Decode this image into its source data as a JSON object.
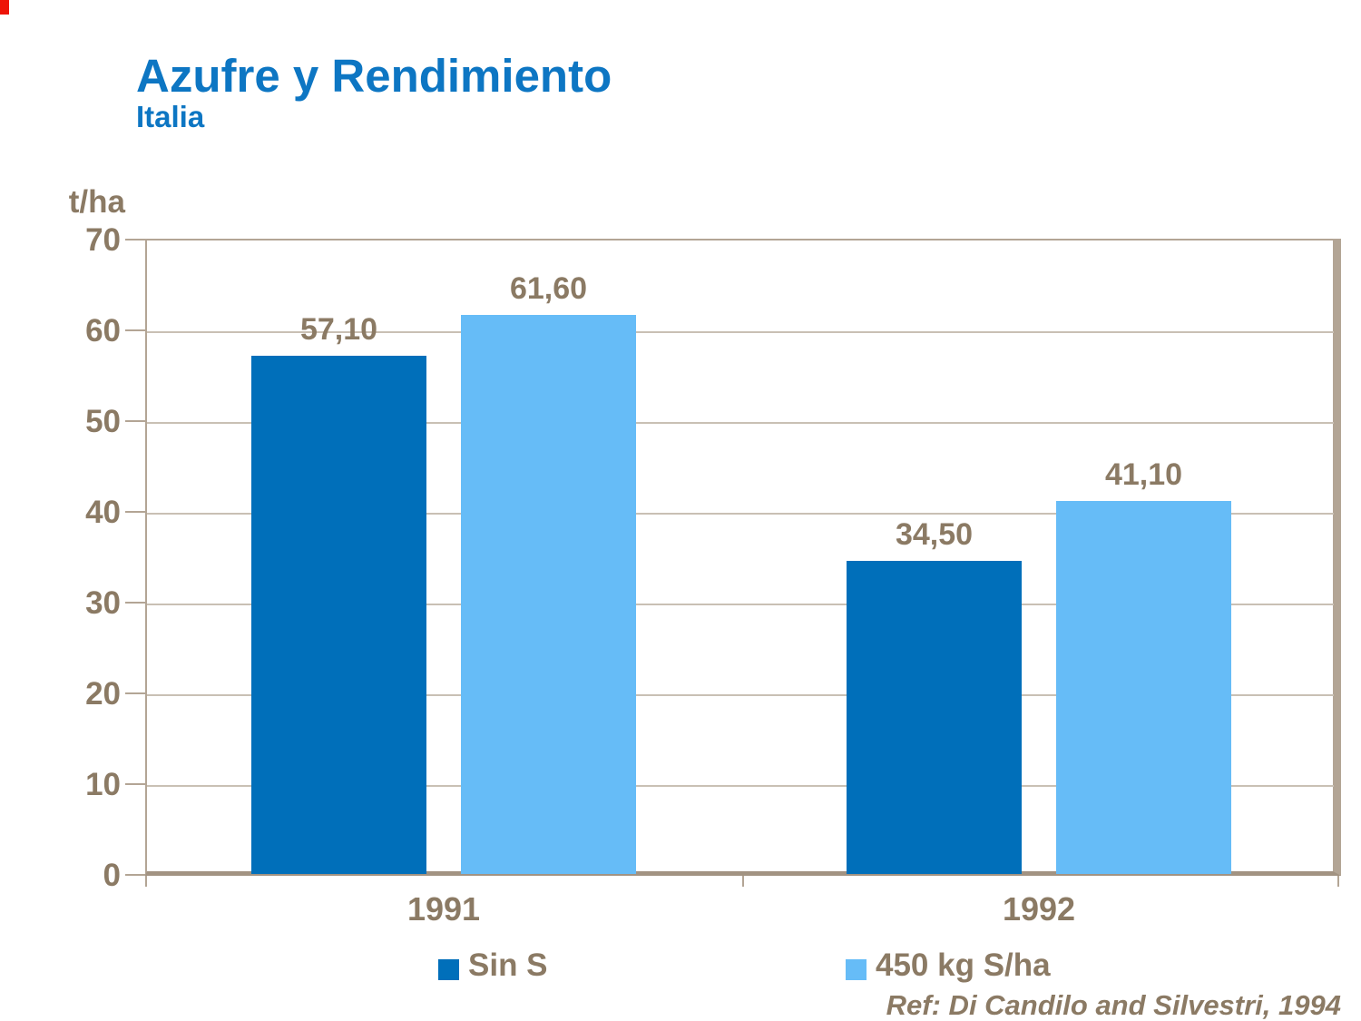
{
  "page": {
    "background": "#FFFFFF",
    "red_corner_mark_color": "#EE1408"
  },
  "header": {
    "title": "Azufre y Rendimiento",
    "subtitle": "Italia",
    "title_color": "#0D76C3"
  },
  "chart_data": {
    "type": "bar",
    "title": "Azufre y Rendimiento",
    "subtitle": "Italia",
    "ylabel": "t/ha",
    "xlabel": "",
    "categories": [
      "1991",
      "1992"
    ],
    "series": [
      {
        "name": "Sin S",
        "color": "#006FBA",
        "values": [
          57.1,
          34.5
        ],
        "value_labels": [
          "57,10",
          "34,50"
        ]
      },
      {
        "name": "450 kg S/ha",
        "color": "#66BCF7",
        "values": [
          61.6,
          41.1
        ],
        "value_labels": [
          "61,60",
          "41,10"
        ]
      }
    ],
    "ylim": [
      0,
      70
    ],
    "yticks": [
      70,
      60,
      50,
      40,
      30,
      20,
      10,
      0
    ],
    "grid": true,
    "legend_position": "bottom",
    "decimal_separator": ",",
    "text_color": "#8B7A64",
    "gridline_color": "#C9C0B4",
    "frame_color": "#B3A595",
    "baseline_color": "#A29382"
  },
  "footer": {
    "reference": "Ref: Di Candilo and Silvestri, 1994"
  }
}
